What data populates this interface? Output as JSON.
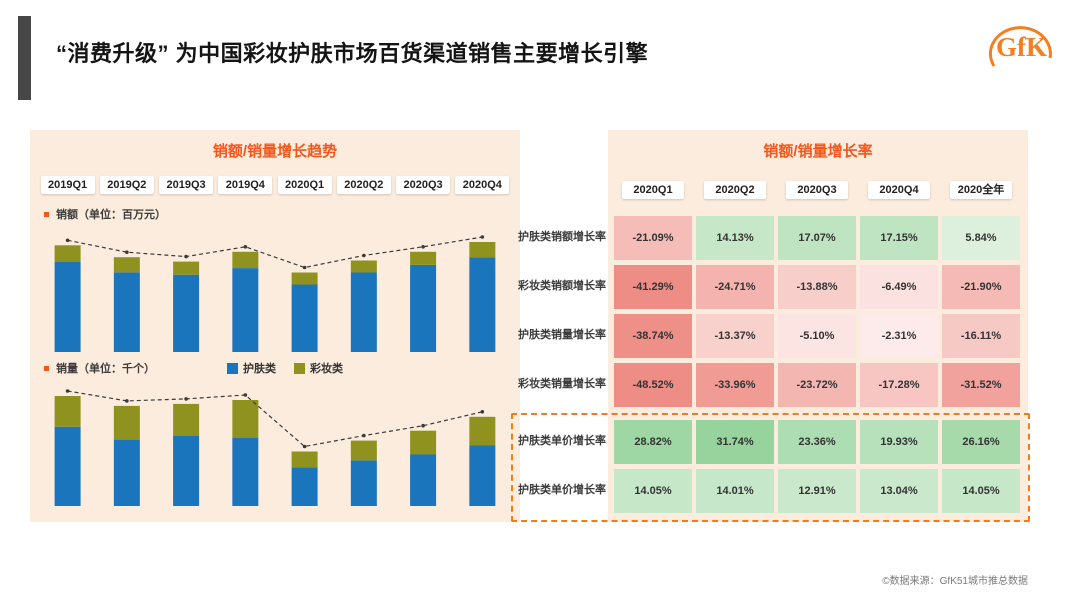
{
  "title": "“消费升级” 为中国彩妆护肤市场百货渠道销售主要增长引擎",
  "logo_text": "GfK",
  "footer": "©数据来源：GfK51城市推总数据",
  "colors": {
    "accent_orange": "#f2571c",
    "panel_bg": "#fcecdd",
    "skincare_blue": "#1b75bc",
    "makeup_olive": "#8f921e",
    "dashed_highlight": "#ef7d1a"
  },
  "trend_panel": {
    "title": "销额/销量增长趋势",
    "quarters": [
      "2019Q1",
      "2019Q2",
      "2019Q3",
      "2019Q4",
      "2020Q1",
      "2020Q2",
      "2020Q3",
      "2020Q4"
    ],
    "amount_label": "销额（单位：百万元）",
    "volume_label": "销量（单位：千个）",
    "legend": [
      {
        "label": "护肤类",
        "color": "#1b75bc"
      },
      {
        "label": "彩妆类",
        "color": "#8f921e"
      }
    ]
  },
  "rate_panel": {
    "title": "销额/销量增长率"
  },
  "chart_data": [
    {
      "type": "bar",
      "stacked": true,
      "title": "销额（单位：百万元）",
      "categories": [
        "2019Q1",
        "2019Q2",
        "2019Q3",
        "2019Q4",
        "2020Q1",
        "2020Q2",
        "2020Q3",
        "2020Q4"
      ],
      "series": [
        {
          "name": "护肤类",
          "color": "#1b75bc",
          "values": [
            83,
            73,
            71,
            77,
            62,
            73,
            80,
            87
          ]
        },
        {
          "name": "彩妆类",
          "color": "#8f921e",
          "values": [
            15,
            14,
            12,
            15,
            11,
            11,
            12,
            14
          ]
        }
      ],
      "total_line": [
        98,
        87,
        83,
        92,
        73,
        84,
        92,
        101
      ],
      "ylabel": "",
      "grid": false,
      "legend_position": "between-charts"
    },
    {
      "type": "bar",
      "stacked": true,
      "title": "销量（单位：千个）",
      "categories": [
        "2019Q1",
        "2019Q2",
        "2019Q3",
        "2019Q4",
        "2020Q1",
        "2020Q2",
        "2020Q3",
        "2020Q4"
      ],
      "series": [
        {
          "name": "护肤类",
          "color": "#1b75bc",
          "values": [
            80,
            67,
            71,
            69,
            39,
            46,
            52,
            61
          ]
        },
        {
          "name": "彩妆类",
          "color": "#8f921e",
          "values": [
            31,
            34,
            32,
            38,
            16,
            20,
            24,
            29
          ]
        }
      ],
      "total_line": [
        111,
        101,
        103,
        107,
        55,
        66,
        76,
        90
      ],
      "ylabel": "",
      "grid": false
    },
    {
      "type": "table",
      "title": "销额/销量增长率",
      "columns": [
        "2020Q1",
        "2020Q2",
        "2020Q3",
        "2020Q4",
        "2020全年"
      ],
      "rows": [
        {
          "label": "护肤类销额增长率",
          "values": [
            "-21.09%",
            "14.13%",
            "17.07%",
            "17.15%",
            "5.84%"
          ]
        },
        {
          "label": "彩妆类销额增长率",
          "values": [
            "-41.29%",
            "-24.71%",
            "-13.88%",
            "-6.49%",
            "-21.90%"
          ]
        },
        {
          "label": "护肤类销量增长率",
          "values": [
            "-38.74%",
            "-13.37%",
            "-5.10%",
            "-2.31%",
            "-16.11%"
          ]
        },
        {
          "label": "彩妆类销量增长率",
          "values": [
            "-48.52%",
            "-33.96%",
            "-23.72%",
            "-17.28%",
            "-31.52%"
          ]
        },
        {
          "label": "护肤类单价增长率",
          "values": [
            "28.82%",
            "31.74%",
            "23.36%",
            "19.93%",
            "26.16%"
          ]
        },
        {
          "label": "护肤类单价增长率",
          "values": [
            "14.05%",
            "14.01%",
            "12.91%",
            "13.04%",
            "14.05%"
          ]
        }
      ],
      "highlighted_rows": [
        4,
        5
      ],
      "cell_coloring": "green for positive, red for negative, intensity scales with magnitude"
    }
  ]
}
